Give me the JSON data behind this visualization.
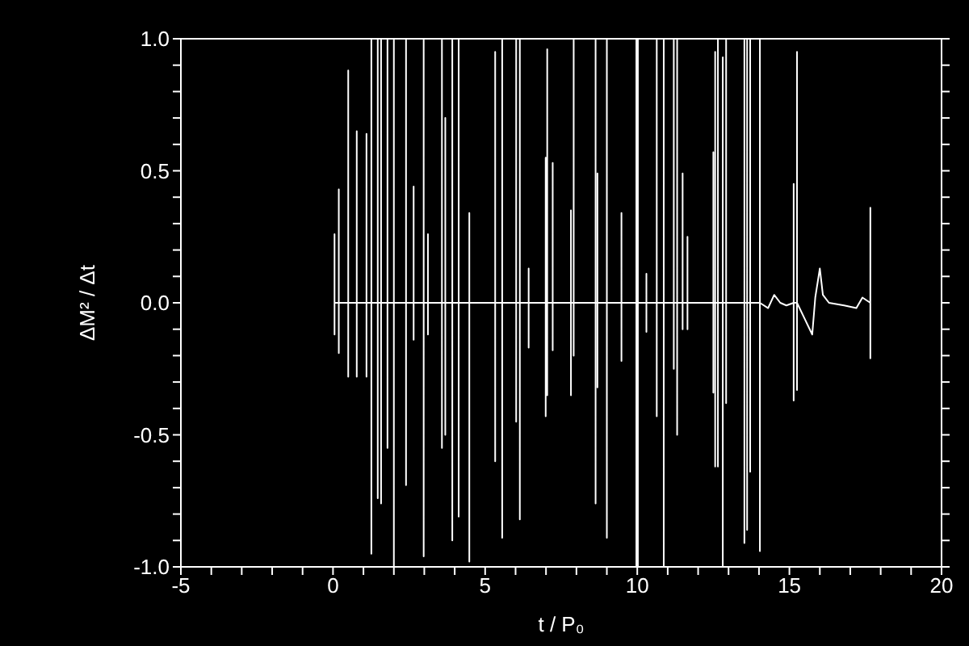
{
  "chart_data": {
    "type": "line",
    "xlabel": "t / P₀",
    "ylabel": "ΔM² / Δt",
    "xlim": [
      -5,
      20
    ],
    "ylim": [
      -1,
      1
    ],
    "xticks": [
      -5,
      {
        "value": -4,
        "label": null
      },
      {
        "value": -3,
        "label": null
      },
      {
        "value": -2,
        "label": null
      },
      {
        "value": -1,
        "label": null
      },
      0,
      {
        "value": 1,
        "label": null
      },
      {
        "value": 2,
        "label": null
      },
      {
        "value": 3,
        "label": null
      },
      {
        "value": 4,
        "label": null
      },
      5,
      {
        "value": 6,
        "label": null
      },
      {
        "value": 7,
        "label": null
      },
      {
        "value": 8,
        "label": null
      },
      {
        "value": 9,
        "label": null
      },
      10,
      {
        "value": 11,
        "label": null
      },
      {
        "value": 12,
        "label": null
      },
      {
        "value": 13,
        "label": null
      },
      {
        "value": 14,
        "label": null
      },
      15,
      {
        "value": 16,
        "label": null
      },
      {
        "value": 17,
        "label": null
      },
      {
        "value": 18,
        "label": null
      },
      {
        "value": 19,
        "label": null
      },
      20
    ],
    "yticks": [
      {
        "value": -1,
        "label": "-1.0"
      },
      {
        "value": -0.9,
        "label": null
      },
      {
        "value": -0.8,
        "label": null
      },
      {
        "value": -0.7,
        "label": null
      },
      {
        "value": -0.6,
        "label": null
      },
      {
        "value": -0.5,
        "label": "-0.5"
      },
      {
        "value": -0.4,
        "label": null
      },
      {
        "value": -0.3,
        "label": null
      },
      {
        "value": -0.2,
        "label": null
      },
      {
        "value": -0.1,
        "label": null
      },
      {
        "value": 0,
        "label": "0.0"
      },
      {
        "value": 0.1,
        "label": null
      },
      {
        "value": 0.2,
        "label": null
      },
      {
        "value": 0.3,
        "label": null
      },
      {
        "value": 0.4,
        "label": null
      },
      {
        "value": 0.5,
        "label": "0.5"
      },
      {
        "value": 0.6,
        "label": null
      },
      {
        "value": 0.7,
        "label": null
      },
      {
        "value": 0.8,
        "label": null
      },
      {
        "value": 0.9,
        "label": null
      },
      {
        "value": 1,
        "label": "1.0"
      }
    ],
    "marker": "none",
    "line_style": "solid",
    "series": [
      {
        "color": "#ffffff",
        "x": [
          0.05,
          0.05,
          0.05,
          0.05,
          0.19,
          0.19,
          0.19,
          0.19,
          0.5,
          0.5,
          0.5,
          0.5,
          0.78,
          0.78,
          0.78,
          0.78,
          1.1,
          1.1,
          1.1,
          1.1,
          1.26,
          1.26,
          1.26,
          1.26,
          1.47,
          1.47,
          1.47,
          1.47,
          1.58,
          1.58,
          1.58,
          1.58,
          1.79,
          1.79,
          1.79,
          1.79,
          2.0,
          2.0,
          2.0,
          2.0,
          2.4,
          2.4,
          2.4,
          2.4,
          2.65,
          2.65,
          2.65,
          2.65,
          2.98,
          2.98,
          2.98,
          2.98,
          3.12,
          3.12,
          3.12,
          3.12,
          3.58,
          3.58,
          3.58,
          3.58,
          3.69,
          3.69,
          3.69,
          3.69,
          3.92,
          3.92,
          3.92,
          3.92,
          4.13,
          4.13,
          4.13,
          4.13,
          4.48,
          4.48,
          4.48,
          4.48,
          5.33,
          5.33,
          5.33,
          5.33,
          5.56,
          5.56,
          5.56,
          5.56,
          6.02,
          6.02,
          6.02,
          6.02,
          6.14,
          6.14,
          6.14,
          6.14,
          6.43,
          6.43,
          6.43,
          6.43,
          6.99,
          6.99,
          6.99,
          6.99,
          7.04,
          7.04,
          7.04,
          7.04,
          7.22,
          7.22,
          7.22,
          7.22,
          7.82,
          7.82,
          7.82,
          7.82,
          7.91,
          7.91,
          7.91,
          7.91,
          8.63,
          8.63,
          8.63,
          8.63,
          8.69,
          8.69,
          8.69,
          8.69,
          9.0,
          9.0,
          9.0,
          9.0,
          9.48,
          9.48,
          9.48,
          9.48,
          9.97,
          9.97,
          9.97,
          9.97,
          10.02,
          10.02,
          10.02,
          10.02,
          10.3,
          10.3,
          10.3,
          10.3,
          10.64,
          10.64,
          10.64,
          10.64,
          10.87,
          10.87,
          10.87,
          10.87,
          11.2,
          11.2,
          11.2,
          11.2,
          11.31,
          11.31,
          11.31,
          11.31,
          11.49,
          11.49,
          11.49,
          11.49,
          11.65,
          11.65,
          11.65,
          11.65,
          12.5,
          12.5,
          12.5,
          12.5,
          12.56,
          12.56,
          12.56,
          12.56,
          12.65,
          12.65,
          12.65,
          12.65,
          12.81,
          12.81,
          12.81,
          12.81,
          12.92,
          12.92,
          12.92,
          12.92,
          13.52,
          13.52,
          13.52,
          13.52,
          13.61,
          13.61,
          13.61,
          13.61,
          13.71,
          13.71,
          13.71,
          13.71,
          14.03,
          14.03,
          14.03,
          14.03,
          14.3,
          14.5,
          14.7,
          14.9,
          15.14,
          15.14,
          15.14,
          15.14,
          15.25,
          15.25,
          15.25,
          15.25,
          15.5,
          15.75,
          15.85,
          16.0,
          16.1,
          16.3,
          16.8,
          17.2,
          17.4,
          17.66,
          17.66,
          17.66,
          17.66
        ],
        "values": [
          0,
          0.26,
          -0.12,
          0,
          0,
          0.43,
          -0.19,
          0,
          0,
          0.88,
          -0.28,
          0,
          0,
          0.65,
          -0.28,
          0,
          0,
          0.64,
          -0.28,
          0,
          0,
          1,
          -0.95,
          0,
          0,
          1,
          -0.74,
          0,
          0,
          1,
          -0.76,
          0,
          0,
          1,
          -0.55,
          0,
          0,
          1,
          -1,
          0,
          0,
          1,
          -0.69,
          0,
          0,
          0.44,
          -0.14,
          0,
          0,
          1,
          -0.96,
          0,
          0,
          0.26,
          -0.12,
          0,
          0,
          1,
          -0.55,
          0,
          0,
          0.7,
          -0.5,
          0,
          0,
          1,
          -0.9,
          0,
          0,
          1,
          -0.81,
          0,
          0,
          0.34,
          -0.98,
          0,
          0,
          0.95,
          -0.6,
          0,
          0,
          1,
          -0.89,
          0,
          0,
          1,
          -0.45,
          0,
          0,
          1,
          -0.82,
          0,
          0,
          0.13,
          -0.17,
          0,
          0,
          0.55,
          -0.43,
          0,
          0,
          0.96,
          -0.35,
          0,
          0,
          0.53,
          -0.18,
          0,
          0,
          0.35,
          -0.35,
          0,
          0,
          1,
          -0.2,
          0,
          0,
          1,
          -0.76,
          0,
          0,
          0.49,
          -0.32,
          0,
          0,
          1,
          -0.89,
          0,
          0,
          0.34,
          -0.22,
          0,
          0,
          1,
          -1,
          0,
          0,
          1,
          -1,
          0,
          0,
          0.11,
          -0.11,
          0,
          0,
          1,
          -0.43,
          0,
          0,
          1,
          -1,
          0,
          0,
          1,
          -0.25,
          0,
          0,
          1,
          -0.5,
          0,
          0,
          0.49,
          -0.1,
          0,
          0,
          0.25,
          -0.1,
          0,
          0,
          0.57,
          -0.34,
          0,
          0,
          0.95,
          -0.62,
          0,
          0,
          1,
          -0.62,
          0,
          0,
          0.93,
          -1,
          0,
          0,
          1,
          -0.38,
          0,
          0,
          1,
          -0.91,
          0,
          0,
          1,
          -0.86,
          0,
          0,
          1,
          -0.64,
          0,
          0,
          1,
          -0.94,
          0,
          -0.02,
          0.03,
          0,
          -0.01,
          0,
          0.45,
          -0.37,
          0,
          0,
          0.95,
          -0.33,
          0,
          -0.06,
          -0.12,
          0.02,
          0.13,
          0.03,
          0,
          -0.01,
          -0.02,
          0.02,
          0,
          0.36,
          -0.21,
          0
        ]
      }
    ]
  }
}
